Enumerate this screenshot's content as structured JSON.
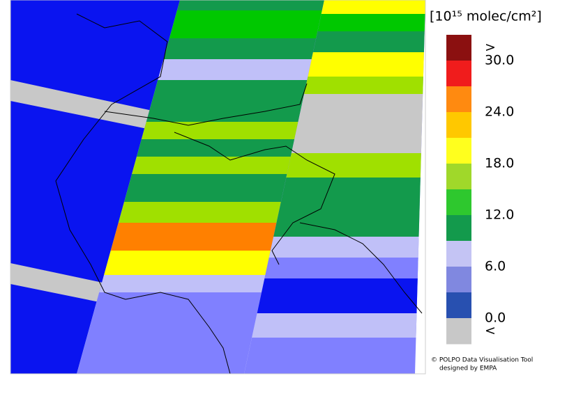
{
  "legend": {
    "title": "[10¹⁵ molec/cm²]",
    "labels": [
      ">",
      "30.0",
      "24.0",
      "18.0",
      "12.0",
      "6.0",
      "0.0",
      "<"
    ],
    "colors": [
      "#8b1010",
      "#f01c1c",
      "#ff8a10",
      "#ffc800",
      "#ffff1e",
      "#a0d82a",
      "#2ec82e",
      "#139a4c",
      "#c4c4f4",
      "#8088e0",
      "#2850b0",
      "#c8c8c8"
    ]
  },
  "credit": [
    "© POLPO Data Visualisation Tool",
    "designed by EMPA"
  ]
}
